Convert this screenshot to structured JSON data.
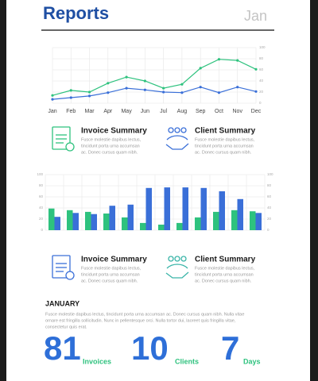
{
  "header": {
    "title": "Reports",
    "month": "Jan"
  },
  "chart_data": [
    {
      "type": "line",
      "categories": [
        "Jan",
        "Feb",
        "Mar",
        "Apr",
        "May",
        "Jun",
        "Jul",
        "Aug",
        "Sep",
        "Oct",
        "Nov",
        "Dec"
      ],
      "series": [
        {
          "color": "#2ec27e",
          "values": [
            14,
            23,
            20,
            36,
            47,
            40,
            27,
            34,
            63,
            79,
            77,
            61
          ]
        },
        {
          "color": "#3a6fd8",
          "values": [
            7,
            10,
            13,
            19,
            27,
            24,
            20,
            19,
            29,
            19,
            29,
            21
          ]
        }
      ],
      "ylim": [
        0,
        100
      ],
      "yticks": [
        0,
        20,
        40,
        60,
        80,
        100
      ],
      "grid": true
    },
    {
      "type": "bar",
      "categories": [
        null,
        null,
        null,
        null,
        null,
        null,
        null,
        null,
        null,
        null,
        null,
        null
      ],
      "series": [
        {
          "color": "#2ec27e",
          "values": [
            39,
            36,
            33,
            30,
            23,
            13,
            10,
            13,
            23,
            33,
            36,
            34
          ]
        },
        {
          "color": "#3a6fd8",
          "values": [
            24,
            31,
            29,
            44,
            46,
            76,
            77,
            77,
            76,
            70,
            56,
            31
          ]
        }
      ],
      "ylim": [
        0,
        100
      ],
      "yticks": [
        0,
        20,
        40,
        60,
        80,
        100
      ],
      "grid": true
    }
  ],
  "summaries": [
    {
      "title": "Invoice Summary",
      "lines": [
        "Fusce molestie dapibus lectus,",
        "tincidunt porta urna accumsan",
        "ac. Donec cursus quam nibh."
      ]
    },
    {
      "title": "Client Summary",
      "lines": [
        "Fusce molestie dapibus lectus,",
        "tincidunt porta urna accumsan",
        "ac. Donec cursus quam nibh."
      ]
    },
    {
      "title": "Invoice Summary",
      "lines": [
        "Fusce molestie dapibus lectus,",
        "tincidunt porta urna accumsan",
        "ac. Donec cursus quam nibh."
      ]
    },
    {
      "title": "Client Summary",
      "lines": [
        "Fusce molestie dapibus lectus,",
        "tincidunt porta urna accumsan",
        "ac. Donec cursus quam nibh."
      ]
    }
  ],
  "report": {
    "title": "JANUARY",
    "lines": [
      "Fusce molestie dapibus lectus, tincidunt porta urna accumsan ac. Donec cursus quam nibh. Nulla vitae",
      "ornare est fringilla sollicitudin. Nunc in pellentesque orci. Nulla tortor dui, laoreet quis fringilla vitae,",
      "consectetur quis erat."
    ]
  },
  "stats": [
    {
      "value": 81,
      "label": "Invoices"
    },
    {
      "value": 10,
      "label": "Clients"
    },
    {
      "value": 7,
      "label": "Days"
    }
  ]
}
